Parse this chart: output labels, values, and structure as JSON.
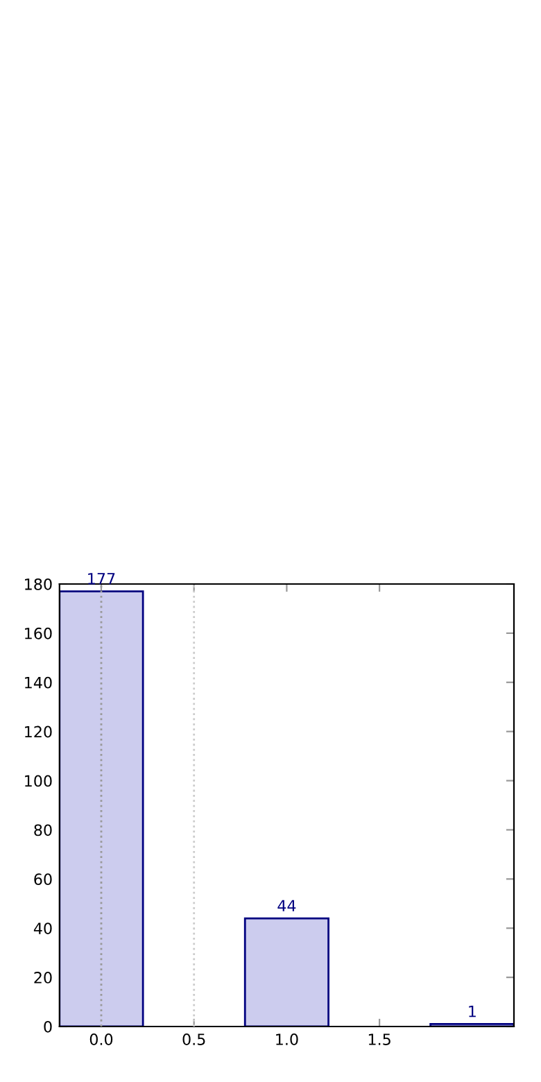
{
  "chart_data": {
    "type": "bar",
    "x": [
      0,
      1,
      2
    ],
    "values": [
      177,
      44,
      1
    ],
    "color": "#ccccee",
    "data_labels": true,
    "xlim": [
      -0.225,
      2.225
    ],
    "xticks": [
      {
        "value": 0,
        "label": "0.0"
      },
      {
        "value": 0.5,
        "label": "0.5"
      },
      {
        "value": 1,
        "label": "1.0"
      },
      {
        "value": 1.5,
        "label": "1.5"
      }
    ],
    "ylim": [
      0,
      180
    ],
    "yticks": [
      0,
      20,
      40,
      60,
      80,
      100,
      120,
      140,
      160,
      180
    ],
    "ref_lines": [
      {
        "axis": "x",
        "value": 0,
        "color": "#999999",
        "line_style": "dotted"
      },
      {
        "axis": "x",
        "value": 0.5,
        "color": "#cccccc",
        "line_style": "dotted"
      }
    ],
    "grid": false
  }
}
